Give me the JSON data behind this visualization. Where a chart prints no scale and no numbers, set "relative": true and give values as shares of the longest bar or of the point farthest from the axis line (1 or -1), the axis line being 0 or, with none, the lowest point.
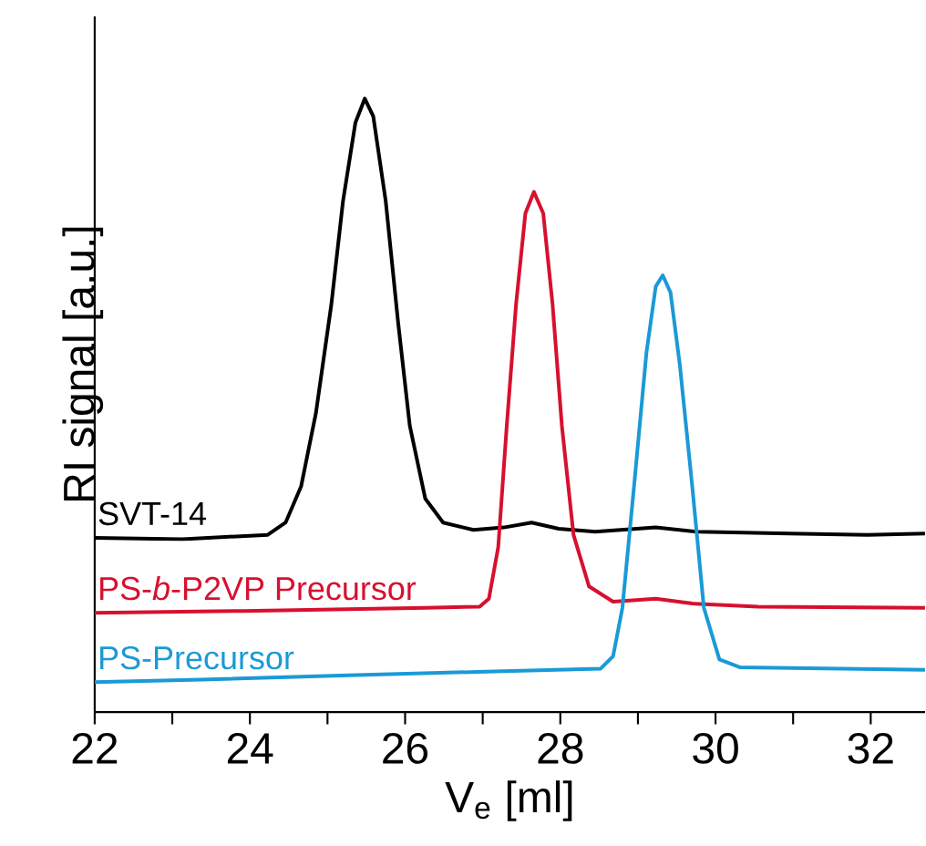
{
  "chart_data": {
    "type": "line",
    "xlabel": "V$_{e}$ [ml]",
    "ylabel": "RI signal [a.u.]",
    "relative": true,
    "xlim": [
      22,
      32.7
    ],
    "xticks": [
      22,
      {
        "value": 23,
        "label": null
      },
      24,
      {
        "value": 25,
        "label": null
      },
      26,
      {
        "value": 27,
        "label": null
      },
      28,
      {
        "value": 29,
        "label": null
      },
      30,
      {
        "value": 31,
        "label": null
      },
      32
    ],
    "grid": false,
    "legend": false,
    "marker": "none",
    "line_style": "solid",
    "series": [
      {
        "name": "SVT-14",
        "color": "#000000",
        "x": [
          22,
          23.13,
          24.23,
          24.46,
          24.66,
          24.85,
          25.05,
          25.2,
          25.36,
          25.48,
          25.59,
          25.75,
          25.91,
          26.06,
          26.26,
          26.49,
          26.88,
          27.27,
          27.63,
          27.98,
          28.45,
          29.23,
          29.77,
          30.95,
          31.96,
          32.7
        ],
        "values": [
          0.284,
          0.282,
          0.289,
          0.309,
          0.368,
          0.487,
          0.665,
          0.833,
          0.961,
          1,
          0.971,
          0.833,
          0.635,
          0.467,
          0.348,
          0.309,
          0.297,
          0.301,
          0.309,
          0.299,
          0.294,
          0.301,
          0.294,
          0.291,
          0.289,
          0.291
        ]
      },
      {
        "name": "PS-*b*-P2VP Precursor",
        "color": "#d7102f",
        "x": [
          22,
          23.91,
          26.26,
          26.96,
          27.08,
          27.2,
          27.31,
          27.43,
          27.55,
          27.66,
          27.78,
          27.9,
          28.02,
          28.17,
          28.37,
          28.68,
          29.23,
          29.7,
          30.55,
          32.7
        ],
        "values": [
          0.162,
          0.165,
          0.17,
          0.172,
          0.185,
          0.269,
          0.467,
          0.665,
          0.813,
          0.848,
          0.813,
          0.665,
          0.467,
          0.289,
          0.205,
          0.18,
          0.185,
          0.177,
          0.172,
          0.17
        ]
      },
      {
        "name": "PS-Precursor",
        "color": "#1a9ad6",
        "x": [
          22,
          23.37,
          25.48,
          27.04,
          28.52,
          28.68,
          28.8,
          28.95,
          29.11,
          29.23,
          29.32,
          29.42,
          29.54,
          29.7,
          29.85,
          30.05,
          30.32,
          32.7
        ],
        "values": [
          0.049,
          0.053,
          0.061,
          0.066,
          0.071,
          0.091,
          0.17,
          0.368,
          0.586,
          0.694,
          0.712,
          0.684,
          0.566,
          0.368,
          0.17,
          0.086,
          0.073,
          0.069
        ]
      }
    ]
  }
}
